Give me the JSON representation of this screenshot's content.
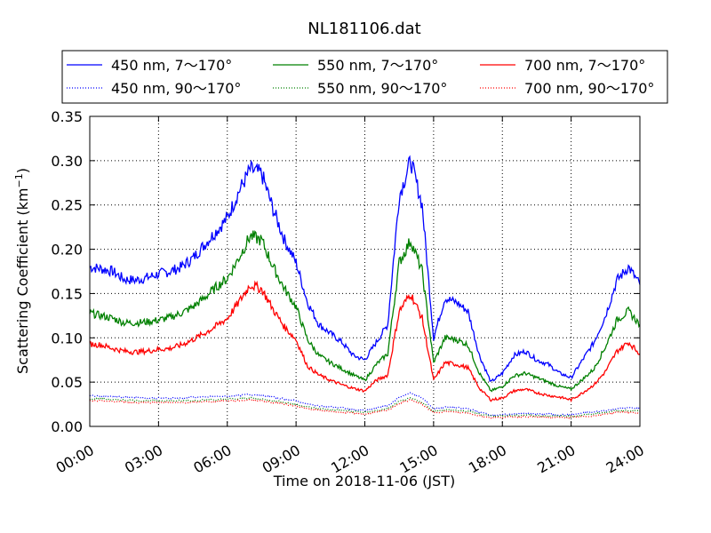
{
  "chart_data": {
    "type": "line",
    "title": "NL181106.dat",
    "xlabel": "Time on 2018-11-06 (JST)",
    "ylabel_main": "Scattering Coefficient (km",
    "ylabel_sup": "−1",
    "ylabel_close": ")",
    "xlim": [
      "00:00",
      "24:00"
    ],
    "ylim": [
      0.0,
      0.35
    ],
    "grid": true,
    "legend_position": "top",
    "x_ticks": [
      "00:00",
      "03:00",
      "06:00",
      "09:00",
      "12:00",
      "15:00",
      "18:00",
      "21:00",
      "24:00"
    ],
    "y_ticks": [
      "0.00",
      "0.05",
      "0.10",
      "0.15",
      "0.20",
      "0.25",
      "0.30",
      "0.35"
    ],
    "x_hours": [
      0,
      0.5,
      1,
      1.5,
      2,
      2.5,
      3,
      3.5,
      4,
      4.5,
      5,
      5.5,
      6,
      6.5,
      7,
      7.5,
      8,
      8.5,
      9,
      9.5,
      10,
      10.5,
      11,
      11.5,
      12,
      12.5,
      13,
      13.5,
      14,
      14.5,
      15,
      15.5,
      16,
      16.5,
      17,
      17.5,
      18,
      18.5,
      19,
      19.5,
      20,
      20.5,
      21,
      21.5,
      22,
      22.5,
      23,
      23.5,
      24
    ],
    "series": [
      {
        "name": "450 nm, 7～170°",
        "color": "#0000ff",
        "style": "solid",
        "values": [
          0.18,
          0.178,
          0.175,
          0.166,
          0.165,
          0.168,
          0.172,
          0.175,
          0.18,
          0.19,
          0.205,
          0.22,
          0.235,
          0.265,
          0.29,
          0.285,
          0.245,
          0.21,
          0.185,
          0.14,
          0.115,
          0.105,
          0.095,
          0.08,
          0.075,
          0.095,
          0.115,
          0.26,
          0.3,
          0.25,
          0.1,
          0.145,
          0.14,
          0.13,
          0.08,
          0.05,
          0.06,
          0.08,
          0.085,
          0.075,
          0.07,
          0.06,
          0.055,
          0.075,
          0.095,
          0.125,
          0.165,
          0.18,
          0.16
        ]
      },
      {
        "name": "550 nm, 7～170°",
        "color": "#008000",
        "style": "solid",
        "values": [
          0.128,
          0.125,
          0.122,
          0.117,
          0.117,
          0.118,
          0.12,
          0.123,
          0.128,
          0.135,
          0.145,
          0.157,
          0.167,
          0.19,
          0.215,
          0.21,
          0.18,
          0.155,
          0.135,
          0.098,
          0.08,
          0.072,
          0.065,
          0.058,
          0.052,
          0.07,
          0.082,
          0.185,
          0.21,
          0.175,
          0.072,
          0.1,
          0.098,
          0.092,
          0.06,
          0.04,
          0.045,
          0.057,
          0.06,
          0.055,
          0.05,
          0.045,
          0.042,
          0.053,
          0.065,
          0.09,
          0.12,
          0.13,
          0.115
        ]
      },
      {
        "name": "700 nm, 7～170°",
        "color": "#ff0000",
        "style": "solid",
        "values": [
          0.093,
          0.092,
          0.088,
          0.085,
          0.084,
          0.085,
          0.087,
          0.088,
          0.092,
          0.098,
          0.105,
          0.113,
          0.122,
          0.14,
          0.16,
          0.155,
          0.132,
          0.112,
          0.098,
          0.068,
          0.058,
          0.052,
          0.047,
          0.043,
          0.04,
          0.052,
          0.058,
          0.13,
          0.15,
          0.122,
          0.052,
          0.072,
          0.07,
          0.066,
          0.043,
          0.03,
          0.032,
          0.04,
          0.042,
          0.038,
          0.035,
          0.033,
          0.03,
          0.038,
          0.047,
          0.062,
          0.085,
          0.095,
          0.082
        ]
      },
      {
        "name": "450 nm, 90～170°",
        "color": "#0000ff",
        "style": "dotted",
        "values": [
          0.035,
          0.034,
          0.034,
          0.033,
          0.033,
          0.032,
          0.032,
          0.032,
          0.032,
          0.033,
          0.033,
          0.034,
          0.034,
          0.035,
          0.036,
          0.035,
          0.033,
          0.031,
          0.029,
          0.025,
          0.023,
          0.022,
          0.021,
          0.019,
          0.018,
          0.021,
          0.023,
          0.033,
          0.038,
          0.032,
          0.02,
          0.022,
          0.021,
          0.02,
          0.016,
          0.013,
          0.013,
          0.014,
          0.015,
          0.014,
          0.014,
          0.013,
          0.013,
          0.015,
          0.016,
          0.018,
          0.02,
          0.021,
          0.02
        ]
      },
      {
        "name": "550 nm, 90～170°",
        "color": "#008000",
        "style": "dotted",
        "values": [
          0.031,
          0.031,
          0.03,
          0.03,
          0.029,
          0.029,
          0.029,
          0.029,
          0.029,
          0.029,
          0.03,
          0.03,
          0.031,
          0.031,
          0.032,
          0.031,
          0.029,
          0.027,
          0.025,
          0.022,
          0.02,
          0.019,
          0.018,
          0.017,
          0.016,
          0.018,
          0.02,
          0.028,
          0.032,
          0.027,
          0.017,
          0.019,
          0.018,
          0.017,
          0.014,
          0.012,
          0.012,
          0.012,
          0.013,
          0.012,
          0.012,
          0.012,
          0.011,
          0.013,
          0.014,
          0.016,
          0.018,
          0.018,
          0.017
        ]
      },
      {
        "name": "700 nm, 90～170°",
        "color": "#ff0000",
        "style": "dotted",
        "values": [
          0.029,
          0.029,
          0.028,
          0.028,
          0.027,
          0.027,
          0.027,
          0.027,
          0.027,
          0.027,
          0.028,
          0.028,
          0.029,
          0.029,
          0.03,
          0.029,
          0.027,
          0.025,
          0.023,
          0.02,
          0.018,
          0.017,
          0.016,
          0.015,
          0.014,
          0.016,
          0.018,
          0.026,
          0.03,
          0.025,
          0.015,
          0.017,
          0.016,
          0.015,
          0.012,
          0.01,
          0.01,
          0.011,
          0.011,
          0.011,
          0.01,
          0.01,
          0.01,
          0.011,
          0.012,
          0.014,
          0.016,
          0.016,
          0.015
        ]
      }
    ]
  }
}
